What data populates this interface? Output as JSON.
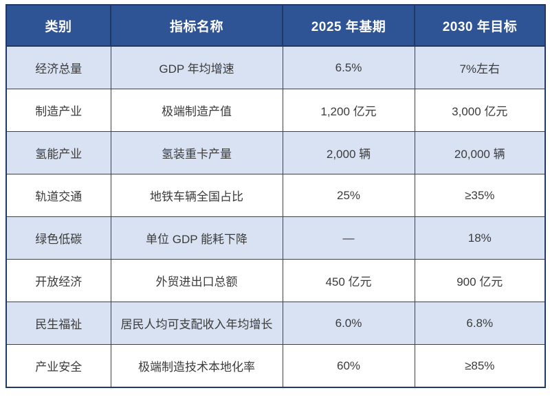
{
  "table": {
    "headers": [
      "类别",
      "指标名称",
      "2025 年基期",
      "2030 年目标"
    ],
    "rows": [
      {
        "category": "经济总量",
        "indicator": "GDP 年均增速",
        "baseline": "6.5%",
        "target": "7%左右"
      },
      {
        "category": "制造产业",
        "indicator": "极端制造产值",
        "baseline": "1,200 亿元",
        "target": "3,000 亿元"
      },
      {
        "category": "氢能产业",
        "indicator": "氢装重卡产量",
        "baseline": "2,000 辆",
        "target": "20,000 辆"
      },
      {
        "category": "轨道交通",
        "indicator": "地铁车辆全国占比",
        "baseline": "25%",
        "target": "≥35%"
      },
      {
        "category": "绿色低碳",
        "indicator": "单位 GDP 能耗下降",
        "baseline": "—",
        "target": "18%"
      },
      {
        "category": "开放经济",
        "indicator": "外贸进出口总额",
        "baseline": "450 亿元",
        "target": "900 亿元"
      },
      {
        "category": "民生福祉",
        "indicator": "居民人均可支配收入年均增长",
        "baseline": "6.0%",
        "target": "6.8%"
      },
      {
        "category": "产业安全",
        "indicator": "极端制造技术本地化率",
        "baseline": "60%",
        "target": "≥85%"
      }
    ],
    "colors": {
      "header_bg": "#2F5496",
      "header_text": "#FFFFFF",
      "alt_row_bg": "#D9E2F3",
      "plain_row_bg": "#FFFFFF",
      "outer_border": "#1F3864",
      "inner_border": "#404040",
      "body_text": "#3B3B3B"
    }
  }
}
